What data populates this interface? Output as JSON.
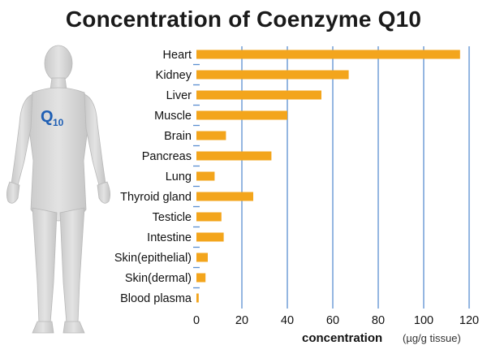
{
  "chart_data": {
    "type": "bar",
    "orientation": "horizontal",
    "title": "Concentration of Coenzyme Q10",
    "categories": [
      "Heart",
      "Kidney",
      "Liver",
      "Muscle",
      "Brain",
      "Pancreas",
      "Lung",
      "Thyroid gland",
      "Testicle",
      "Intestine",
      "Skin(epithelial)",
      "Skin(dermal)",
      "Blood plasma"
    ],
    "values": [
      116,
      67,
      55,
      40,
      13,
      33,
      8,
      25,
      11,
      12,
      5,
      4,
      1
    ],
    "xlabel": "concentration",
    "xlabel_unit": "(µg/g tissue)",
    "xlim": [
      0,
      120
    ],
    "xticks": [
      "0",
      "20",
      "40",
      "60",
      "80",
      "100",
      "120"
    ],
    "grid": "vertical",
    "bar_color": "#f3a51c",
    "grid_color": "#5b8fd1"
  },
  "figure": {
    "label_main": "Q",
    "label_sub": "10",
    "label_color": "#1f5fb4"
  }
}
